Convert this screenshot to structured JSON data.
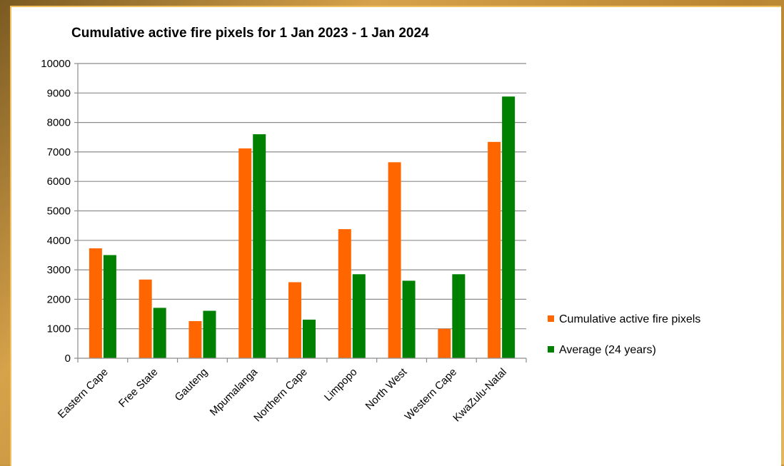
{
  "chart_data": {
    "type": "bar",
    "title": "Cumulative active fire pixels for 1 Jan 2023 - 1 Jan 2024",
    "xlabel": "",
    "ylabel": "",
    "ylim": [
      0,
      10000
    ],
    "yticks": [
      0,
      1000,
      2000,
      3000,
      4000,
      5000,
      6000,
      7000,
      8000,
      9000,
      10000
    ],
    "categories": [
      "Eastern Cape",
      "Free State",
      "Gauteng",
      "Mpumalanga",
      "Northern Cape",
      "Limpopo",
      "North West",
      "Western Cape",
      "KwaZulu-Natal"
    ],
    "series": [
      {
        "name": "Cumulative active fire pixels",
        "color": "#ff6600",
        "values": [
          3730,
          2670,
          1260,
          7120,
          2580,
          4380,
          6650,
          1000,
          7340
        ]
      },
      {
        "name": "Average (24 years)",
        "color": "#008000",
        "values": [
          3500,
          1710,
          1610,
          7600,
          1310,
          2850,
          2630,
          2850,
          8880
        ]
      }
    ],
    "grid": true,
    "legend_position": "right"
  }
}
